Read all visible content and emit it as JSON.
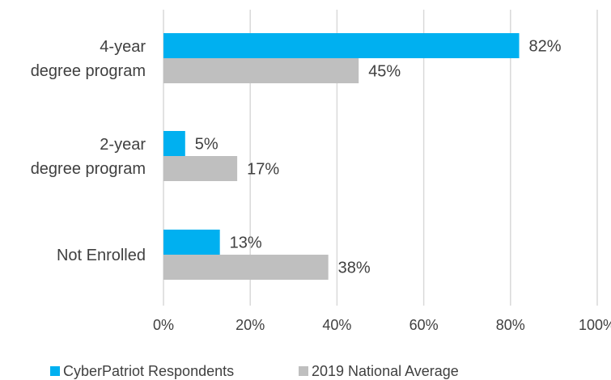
{
  "chart_data": {
    "type": "bar",
    "orientation": "horizontal",
    "categories": [
      [
        "4-year",
        "degree program"
      ],
      [
        "2-year",
        "degree program"
      ],
      [
        "Not Enrolled"
      ]
    ],
    "series": [
      {
        "name": "CyberPatriot Respondents",
        "color": "#00B0F0",
        "values": [
          82,
          5,
          13
        ],
        "labels": [
          "82%",
          "5%",
          "13%"
        ]
      },
      {
        "name": "2019 National Average",
        "color": "#BFBFBF",
        "values": [
          45,
          17,
          38
        ],
        "labels": [
          "45%",
          "17%",
          "38%"
        ]
      }
    ],
    "x_ticks": [
      "0%",
      "20%",
      "40%",
      "60%",
      "80%",
      "100%"
    ],
    "xlim": [
      0,
      100
    ],
    "grid": true,
    "gridline_color": "#D9D9D9",
    "legend_position": "bottom",
    "title": "",
    "xlabel": "",
    "ylabel": ""
  }
}
